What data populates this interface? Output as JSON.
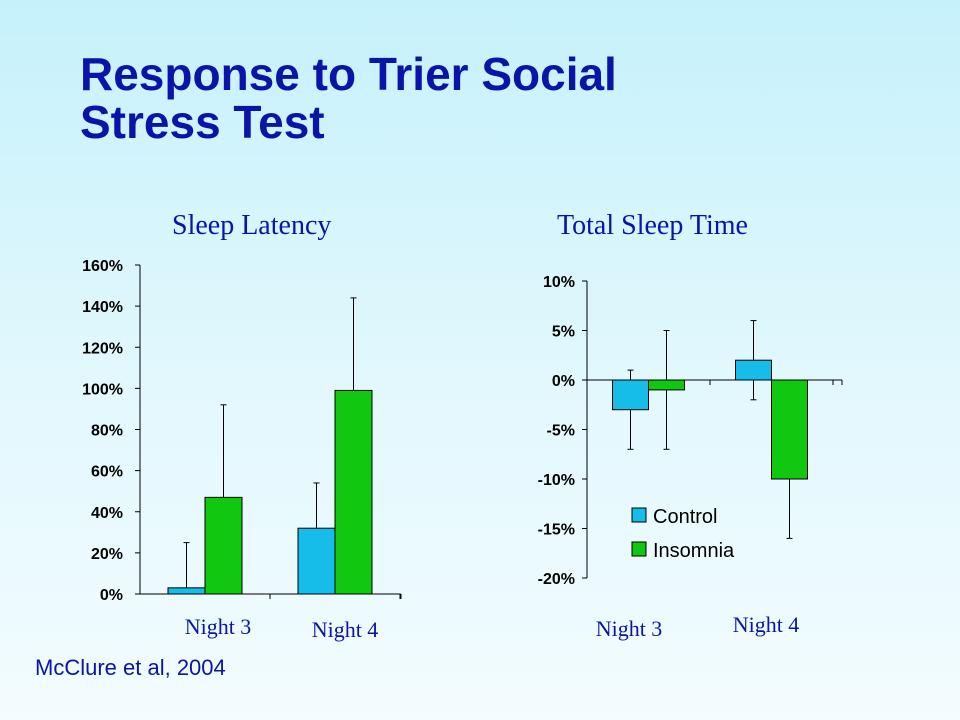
{
  "title_lines": [
    "Response to Trier Social",
    "Stress Test"
  ],
  "citation": "McClure et al, 2004",
  "colors": {
    "control": "#16bde8",
    "insomnia": "#11c811",
    "title": "#0a14a8"
  },
  "chart_data": [
    {
      "type": "bar",
      "title": "Sleep Latency",
      "categories": [
        "Night 3",
        "Night 4"
      ],
      "series": [
        {
          "name": "Control",
          "values": [
            3,
            32
          ],
          "error": [
            22,
            22
          ]
        },
        {
          "name": "Insomnia",
          "values": [
            47,
            99
          ],
          "error": [
            45,
            45
          ]
        }
      ],
      "ylim": [
        0,
        160
      ],
      "yticks": [
        0,
        20,
        40,
        60,
        80,
        100,
        120,
        140,
        160
      ],
      "ytick_labels": [
        "0%",
        "20%",
        "40%",
        "60%",
        "80%",
        "100%",
        "120%",
        "140%",
        "160%"
      ],
      "error_direction": "up",
      "legend": false
    },
    {
      "type": "bar",
      "title": "Total Sleep Time",
      "categories": [
        "Night 3",
        "Night 4"
      ],
      "series": [
        {
          "name": "Control",
          "values": [
            -3,
            2
          ],
          "error": [
            4,
            4
          ]
        },
        {
          "name": "Insomnia",
          "values": [
            -1,
            -10
          ],
          "error": [
            6,
            6
          ]
        }
      ],
      "ylim": [
        -20,
        10
      ],
      "yticks": [
        -20,
        -15,
        -10,
        -5,
        0,
        5,
        10
      ],
      "ytick_labels": [
        "-20%",
        "-15%",
        "-10%",
        "-5%",
        "0%",
        "5%",
        "10%"
      ],
      "error_direction": "both",
      "legend": true,
      "legend_placement": "lower-left"
    }
  ]
}
